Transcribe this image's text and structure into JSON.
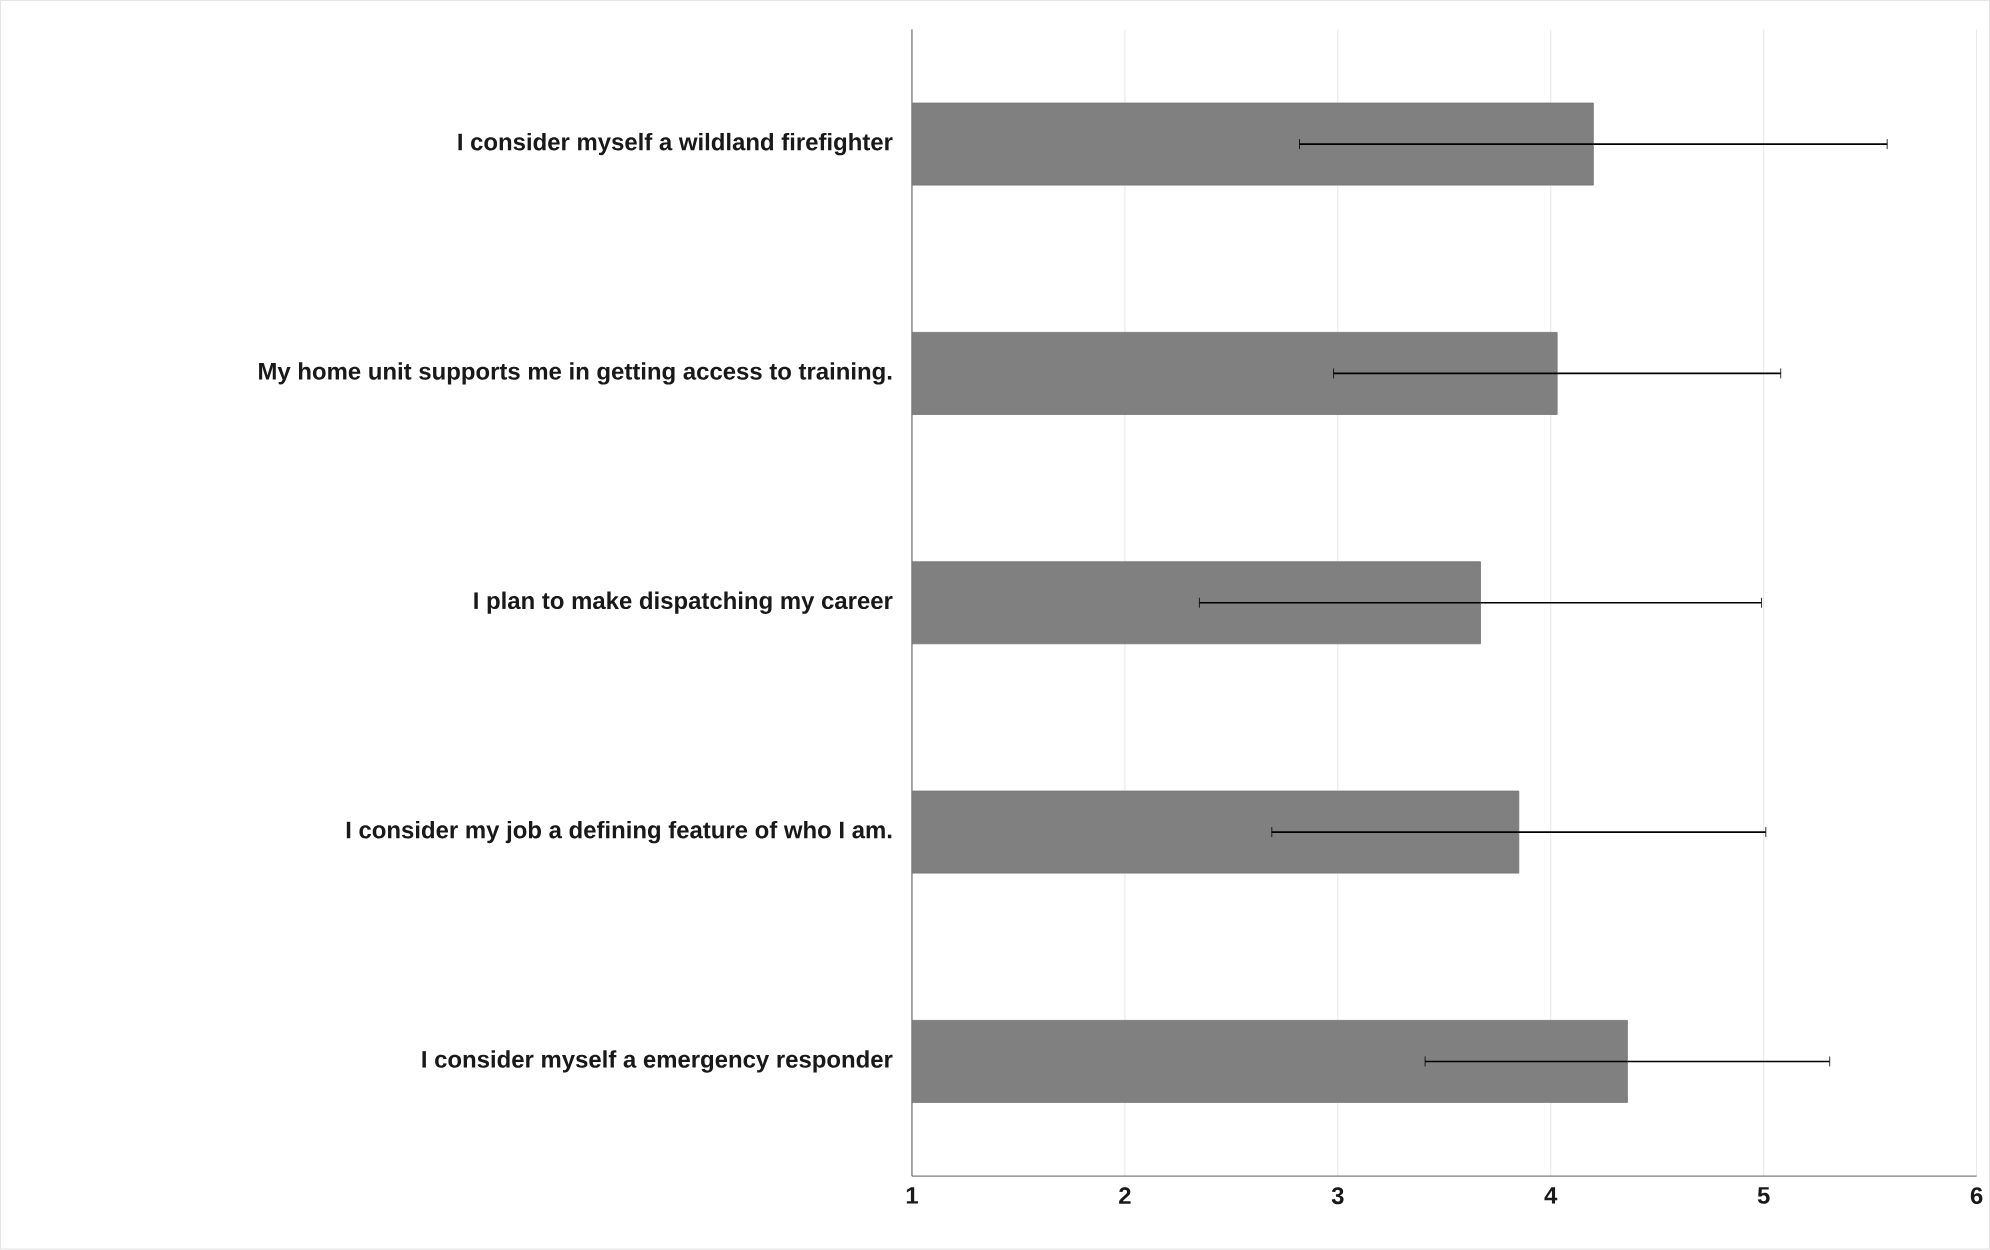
{
  "chart_data": {
    "type": "bar",
    "orientation": "horizontal",
    "categories": [
      "I consider myself a wildland firefighter",
      "My home unit supports me in getting access to training.",
      "I plan to make dispatching my career",
      "I consider my job a defining feature of who I am.",
      "I consider myself a emergency responder"
    ],
    "values": [
      4.2,
      4.03,
      3.67,
      3.85,
      4.36
    ],
    "errors": [
      1.38,
      1.05,
      1.32,
      1.16,
      0.95
    ],
    "color": "#808080",
    "xlim": [
      1,
      6
    ],
    "xticks": [
      1,
      2,
      3,
      4,
      5,
      6
    ],
    "grid": "x"
  }
}
